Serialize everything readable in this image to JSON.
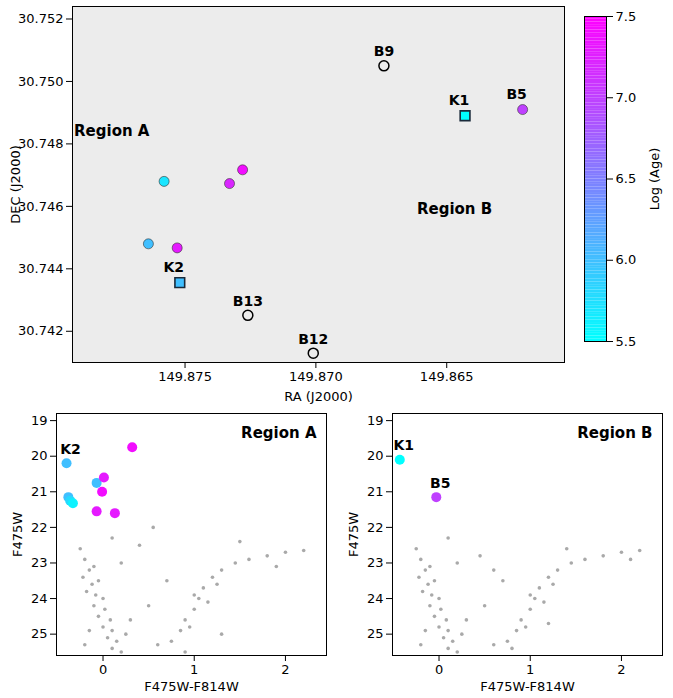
{
  "chart_data": [
    {
      "type": "scatter",
      "xlabel": "RA (J2000)",
      "ylabel": "DEC (J2000)",
      "xlim": [
        149.8793,
        149.8605
      ],
      "ylim": [
        30.741,
        30.7524
      ],
      "xticks": [
        {
          "value": 149.875,
          "label": "149.875"
        },
        {
          "value": 149.87,
          "label": "149.870"
        },
        {
          "value": 149.865,
          "label": "149.865"
        }
      ],
      "yticks": [
        30.742,
        30.744,
        30.746,
        30.748,
        {
          "value": 30.75,
          "label": "30.750"
        },
        30.752
      ],
      "points": {
        "x": [
          149.8643,
          149.8621,
          149.8752,
          149.8758,
          149.8728,
          149.8733,
          149.8764,
          149.8753
        ],
        "y": [
          30.7489,
          30.7491,
          30.74356,
          30.7468,
          30.74717,
          30.74673,
          30.7448,
          30.74467
        ],
        "log_age": [
          5.5,
          7.0,
          6.0,
          5.7,
          7.4,
          7.2,
          6.0,
          7.3
        ],
        "marker": [
          "square",
          "circle",
          "square",
          "circle",
          "circle",
          "circle",
          "circle",
          "circle"
        ],
        "labels": [
          "K1",
          "B5",
          "K2",
          null,
          null,
          null,
          null,
          null
        ]
      },
      "named_stars": {
        "x": [
          149.8674,
          149.8726,
          149.8701
        ],
        "y": [
          30.7505,
          30.74251,
          30.7413
        ],
        "labels": [
          "B9",
          "B13",
          "B12"
        ],
        "marker": "ring",
        "color": "#000000"
      },
      "annotations": [
        {
          "text": "Region A",
          "x": 149.8778,
          "y": 30.7484
        },
        {
          "text": "Region B",
          "x": 149.8647,
          "y": 30.7459
        }
      ],
      "colorbar": {
        "label": "Log (Age)",
        "range": [
          5.5,
          7.5
        ],
        "ticks": [
          5.5,
          {
            "value": 6,
            "label": "6.0"
          },
          6.5,
          {
            "value": 7,
            "label": "7.0"
          },
          7.5
        ],
        "colors": [
          "#00ffff",
          "#ff00ff"
        ]
      }
    },
    {
      "type": "scatter",
      "title": "Region A",
      "xlabel": "F475W-F814W",
      "ylabel": "F475W",
      "xlim": [
        -0.51,
        2.45
      ],
      "ylim": [
        25.6,
        18.8
      ],
      "xticks": [
        0,
        1,
        2
      ],
      "yticks": [
        19,
        20,
        21,
        22,
        23,
        24,
        25
      ],
      "field": {
        "color": "#8c8c8c",
        "x": [
          -0.2,
          -0.15,
          -0.1,
          -0.22,
          -0.12,
          -0.05,
          -0.18,
          -0.08,
          0.0,
          -0.1,
          0.02,
          -0.05,
          0.08,
          0.0,
          0.1,
          0.05,
          0.15,
          0.1,
          0.2,
          -0.15,
          -0.2,
          0.25,
          0.3,
          -0.25,
          0.1,
          0.2,
          0.6,
          0.75,
          0.85,
          0.9,
          1.0,
          1.05,
          1.1,
          1.2,
          1.3,
          1.45,
          1.6,
          1.8,
          2.0,
          2.2,
          1.0,
          0.95,
          1.15,
          1.25,
          0.5,
          0.7,
          0.4,
          1.5,
          1.9,
          0.9,
          1.3,
          0.55
        ],
        "y": [
          22.9,
          23.2,
          23.1,
          23.4,
          23.6,
          23.5,
          23.8,
          23.9,
          24.0,
          24.2,
          24.3,
          24.5,
          24.6,
          24.8,
          24.9,
          25.1,
          25.2,
          25.4,
          25.5,
          24.9,
          25.3,
          25.0,
          24.6,
          22.6,
          22.3,
          23.0,
          25.3,
          25.2,
          24.9,
          24.6,
          24.3,
          24.0,
          23.7,
          23.4,
          23.2,
          23.0,
          22.9,
          22.8,
          22.7,
          22.65,
          23.9,
          24.8,
          24.1,
          23.6,
          24.2,
          23.5,
          22.5,
          22.4,
          23.1,
          25.5,
          25.0,
          22.0
        ]
      },
      "points": {
        "x": [
          -0.4,
          -0.38,
          -0.36,
          -0.33,
          -0.07,
          0.01,
          -0.01,
          0.32,
          -0.07,
          0.13
        ],
        "y": [
          20.2,
          21.15,
          21.25,
          21.32,
          20.75,
          20.6,
          21.0,
          19.75,
          21.55,
          21.6
        ],
        "log_age": [
          6.0,
          6.0,
          5.8,
          5.6,
          6.0,
          7.3,
          7.4,
          7.4,
          7.3,
          7.3
        ],
        "labels": [
          "K2",
          null,
          null,
          null,
          null,
          null,
          null,
          null,
          null,
          null
        ]
      }
    },
    {
      "type": "scatter",
      "title": "Region B",
      "xlabel": "F475W-F814W",
      "ylabel": "F475W",
      "xlim": [
        -0.51,
        2.45
      ],
      "ylim": [
        25.6,
        18.8
      ],
      "xticks": [
        0,
        1,
        2
      ],
      "yticks": [
        19,
        20,
        21,
        22,
        23,
        24,
        25
      ],
      "field": {
        "color": "#8c8c8c",
        "x": [
          -0.2,
          -0.15,
          -0.1,
          -0.22,
          -0.12,
          -0.05,
          -0.18,
          -0.08,
          0.0,
          -0.1,
          0.02,
          -0.05,
          0.08,
          0.0,
          0.1,
          0.05,
          0.15,
          0.1,
          0.2,
          -0.15,
          -0.2,
          0.25,
          0.3,
          -0.25,
          0.1,
          0.2,
          0.6,
          0.75,
          0.85,
          0.9,
          1.0,
          1.05,
          1.1,
          1.2,
          1.3,
          1.45,
          1.6,
          1.8,
          2.0,
          2.2,
          1.0,
          0.95,
          1.15,
          1.25,
          0.5,
          0.7,
          0.45,
          1.4,
          2.1,
          0.8,
          1.2,
          0.6
        ],
        "y": [
          22.9,
          23.2,
          23.1,
          23.4,
          23.6,
          23.5,
          23.8,
          23.9,
          24.0,
          24.2,
          24.3,
          24.5,
          24.6,
          24.8,
          24.9,
          25.1,
          25.2,
          25.4,
          25.5,
          24.9,
          25.3,
          25.0,
          24.6,
          22.6,
          22.3,
          23.0,
          25.3,
          25.2,
          24.9,
          24.6,
          24.3,
          24.0,
          23.7,
          23.4,
          23.2,
          23.0,
          22.9,
          22.8,
          22.7,
          22.65,
          23.9,
          24.8,
          24.1,
          23.6,
          24.2,
          23.5,
          22.8,
          22.6,
          22.9,
          25.4,
          24.7,
          23.2
        ]
      },
      "points": {
        "x": [
          -0.43,
          -0.03
        ],
        "y": [
          20.1,
          21.15
        ],
        "log_age": [
          5.5,
          7.0
        ],
        "labels": [
          "K1",
          "B5"
        ]
      }
    }
  ]
}
